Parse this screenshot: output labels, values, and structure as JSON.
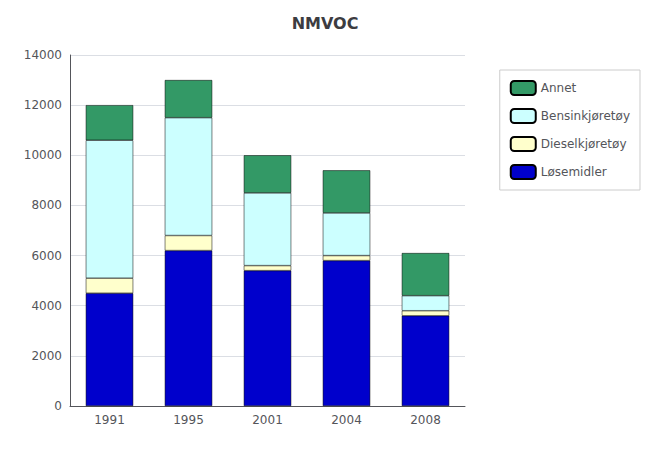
{
  "chart_data": {
    "type": "bar",
    "title": "NMVOC",
    "categories": [
      "1991",
      "1995",
      "2001",
      "2004",
      "2008"
    ],
    "series": [
      {
        "name": "Løsemidler",
        "color": "#0000cc",
        "values": [
          4500,
          6200,
          5400,
          5800,
          3600
        ]
      },
      {
        "name": "Dieselkjøretøy",
        "color": "#ffffcc",
        "values": [
          600,
          600,
          200,
          200,
          200
        ]
      },
      {
        "name": "Bensinkjøretøy",
        "color": "#ccffff",
        "values": [
          5500,
          4700,
          2900,
          1700,
          600
        ]
      },
      {
        "name": "Annet",
        "color": "#339966",
        "values": [
          1400,
          1500,
          1500,
          1700,
          1700
        ]
      }
    ],
    "stacked": true,
    "ylim": [
      0,
      14000
    ],
    "yticks": [
      0,
      2000,
      4000,
      6000,
      8000,
      10000,
      12000,
      14000
    ],
    "grid": true,
    "legend": "right"
  }
}
